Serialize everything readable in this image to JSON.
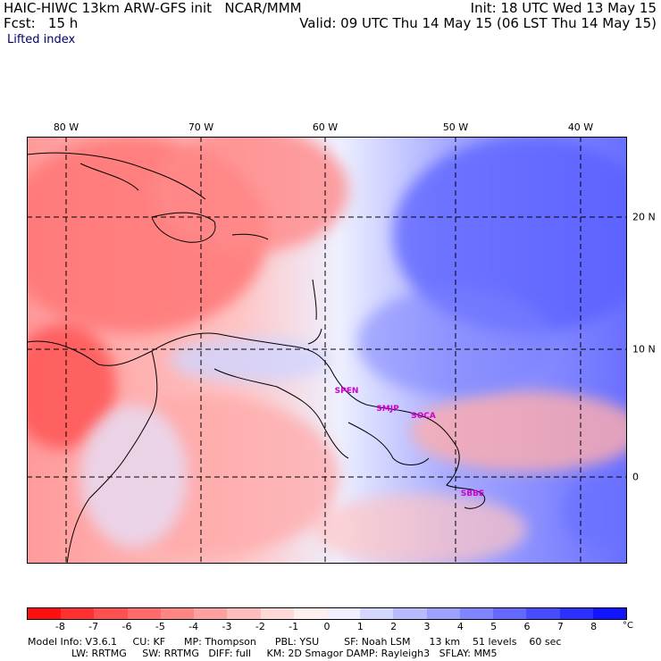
{
  "header": {
    "line1_left": "HAIC-HIWC 13km ARW-GFS init   NCAR/MMM",
    "line1_right": "Init: 18 UTC Wed 13 May 15",
    "line2_left": "Fcst:   15 h",
    "line2_right": "Valid: 09 UTC Thu 14 May 15 (06 LST Thu 14 May 15)",
    "field": "Lifted index"
  },
  "longitude_labels": [
    "80 W",
    "70 W",
    "60 W",
    "50 W",
    "40 W"
  ],
  "latitude_labels": [
    "20 N",
    "10 N",
    "0"
  ],
  "stations": [
    {
      "name": "SPEN"
    },
    {
      "name": "SMJP"
    },
    {
      "name": "SOCA"
    },
    {
      "name": "SBBE"
    }
  ],
  "colorbar": {
    "labels": [
      "-8",
      "-7",
      "-6",
      "-5",
      "-4",
      "-3",
      "-2",
      "-1",
      "0",
      "1",
      "2",
      "3",
      "4",
      "5",
      "6",
      "7",
      "8"
    ],
    "unit": "°C",
    "colors": [
      "#ff1010",
      "#ff3030",
      "#ff5050",
      "#ff6a6a",
      "#ff8585",
      "#ffa0a0",
      "#ffbcbc",
      "#ffd8d8",
      "#fff0f0",
      "#f0f0ff",
      "#d4d8ff",
      "#b8bcff",
      "#9ca0ff",
      "#8085ff",
      "#6468ff",
      "#484cff",
      "#2c30ff",
      "#1014ff"
    ]
  },
  "footer": {
    "line1": "Model Info: V3.6.1     CU: KF      MP: Thompson      PBL: YSU        SF: Noah LSM      13 km    51 levels    60 sec",
    "line2": "              LW: RRTMG     SW: RRTMG   DIFF: full     KM: 2D Smagor DAMP: Rayleigh3   SFLAY: MM5"
  }
}
